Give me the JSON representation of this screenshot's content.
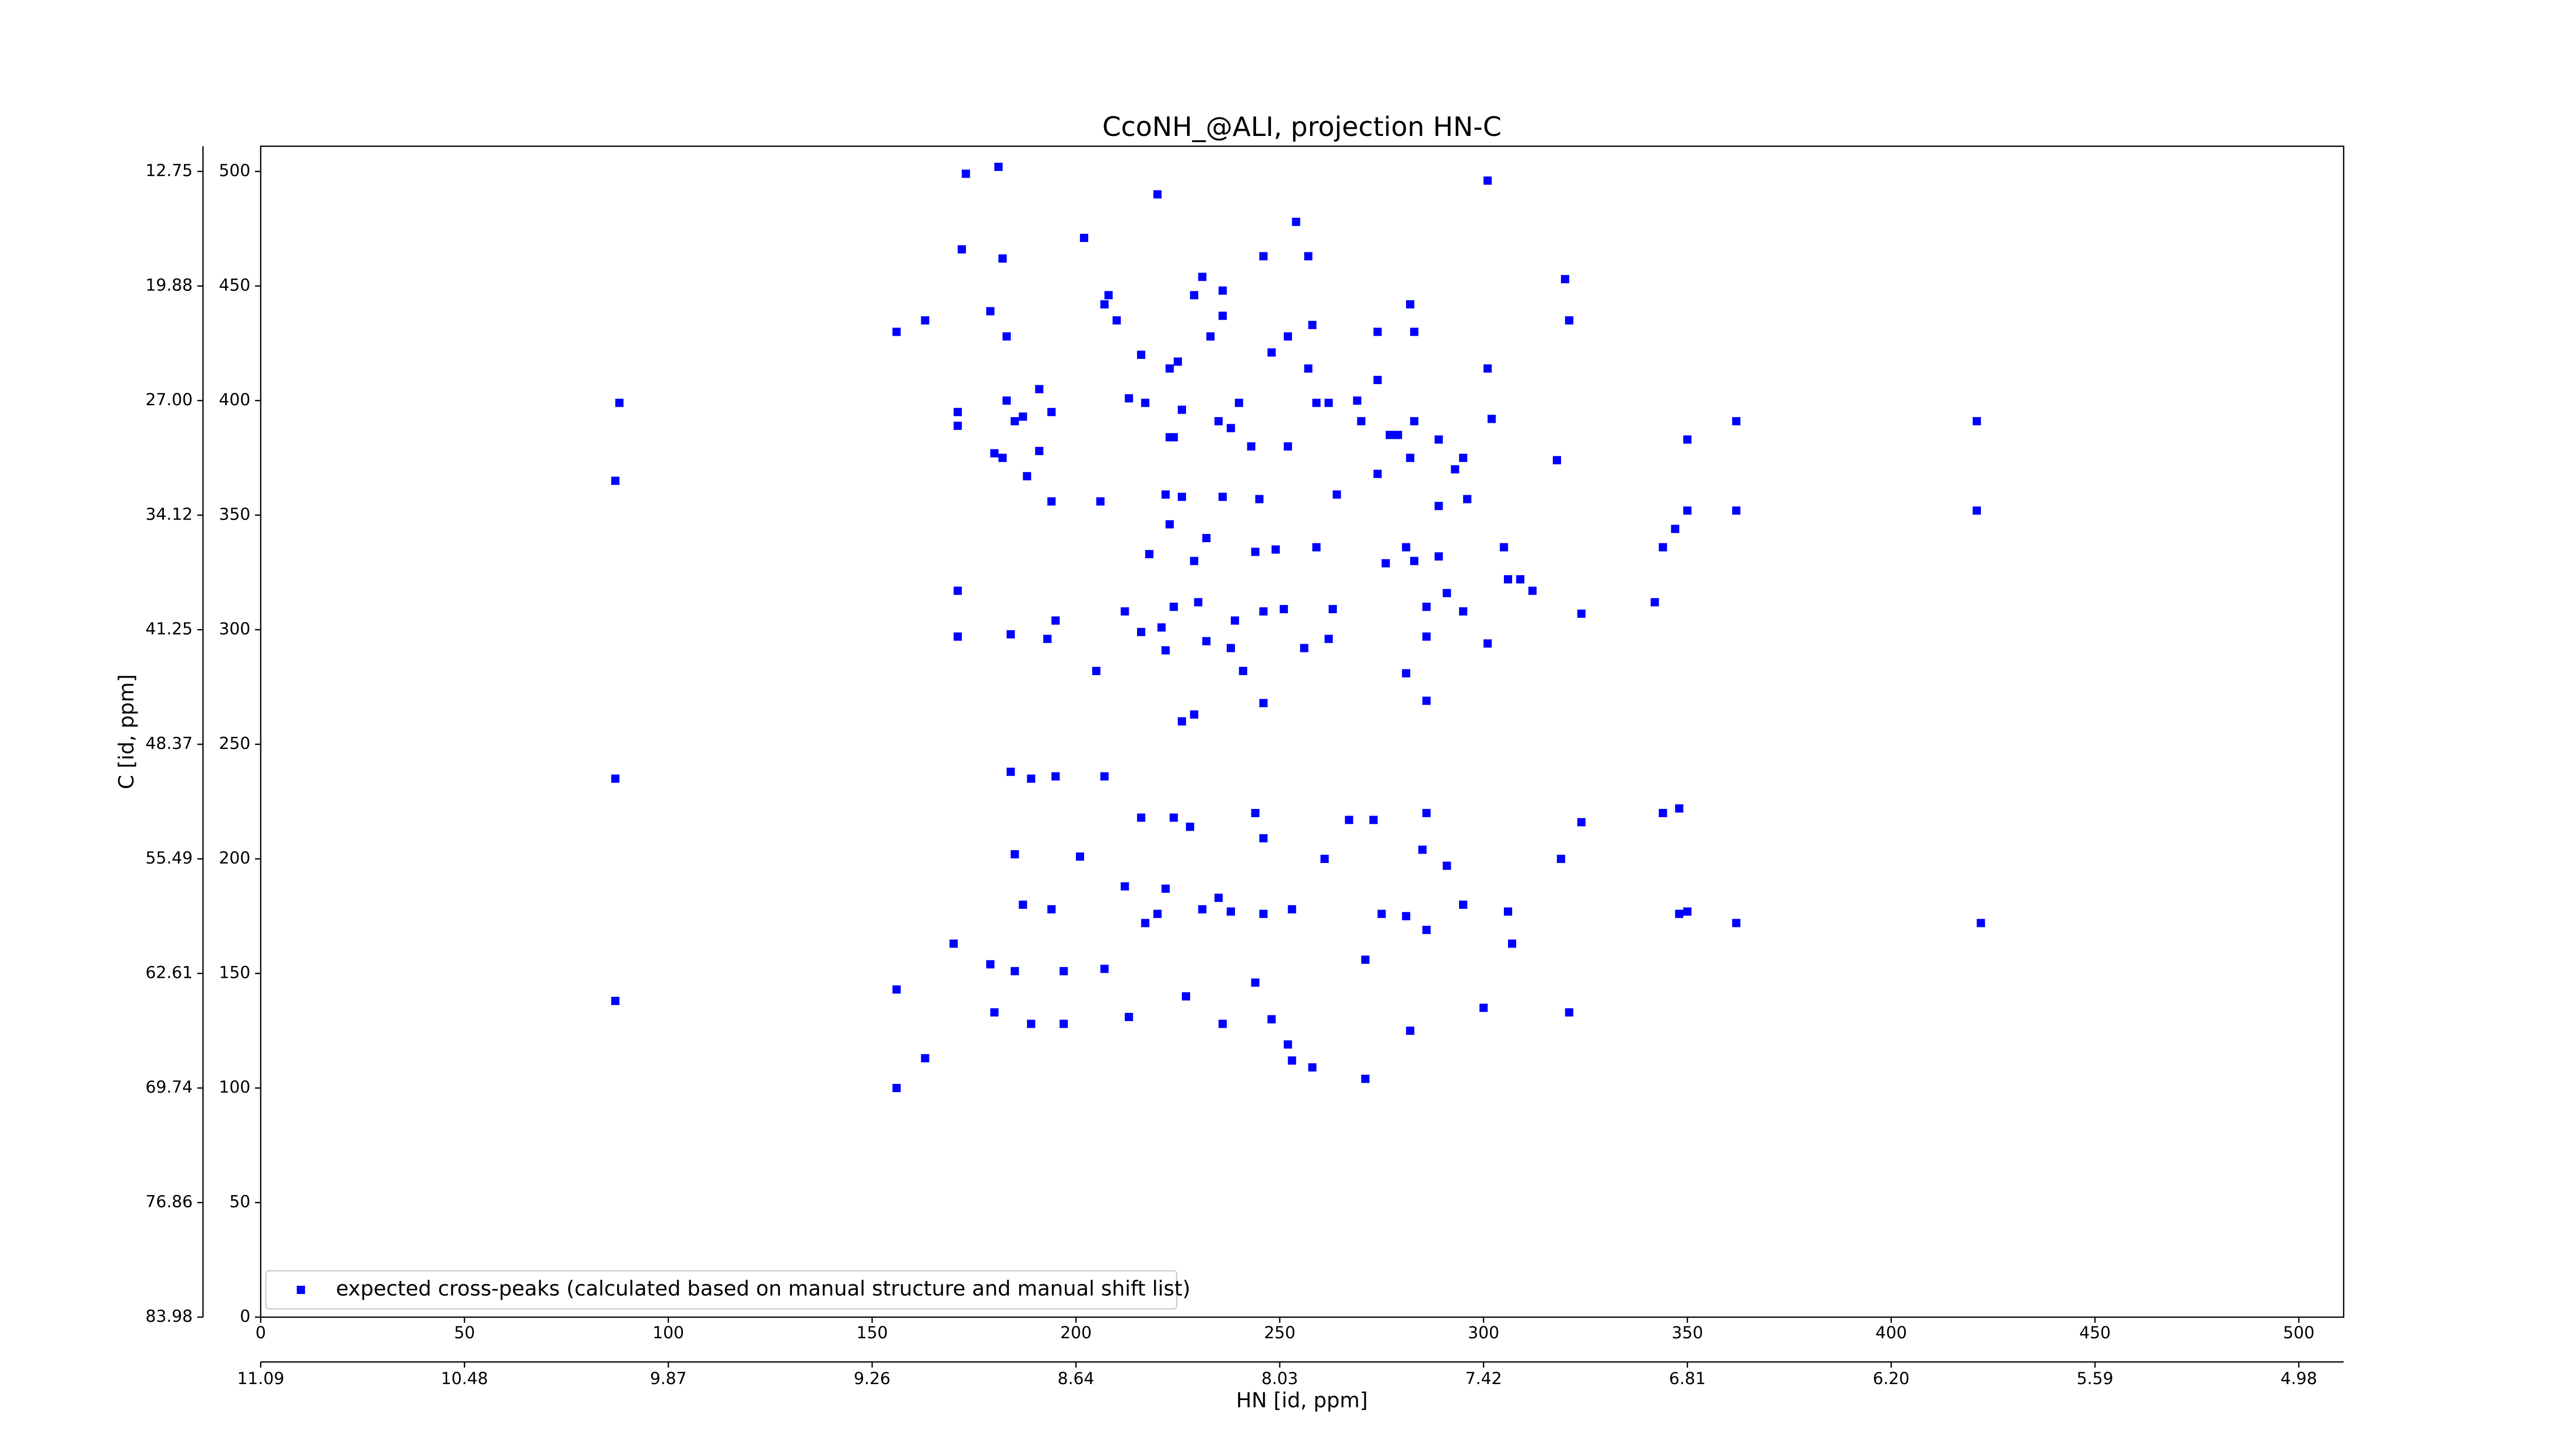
{
  "chart_data": {
    "type": "scatter",
    "title": "CcoNH_@ALI, projection HN-C",
    "xlabel": "HN [id, ppm]",
    "ylabel": "C [id, ppm]",
    "xlim": [
      0,
      511
    ],
    "ylim": [
      0,
      511
    ],
    "xticks": [
      0,
      50,
      100,
      150,
      200,
      250,
      300,
      350,
      400,
      450,
      500
    ],
    "yticks": [
      0,
      50,
      100,
      150,
      200,
      250,
      300,
      350,
      400,
      450,
      500
    ],
    "x2ticks": [
      {
        "value": 0,
        "label": "11.09"
      },
      {
        "value": 50,
        "label": "10.48"
      },
      {
        "value": 100,
        "label": "9.87"
      },
      {
        "value": 150,
        "label": "9.26"
      },
      {
        "value": 200,
        "label": "8.64"
      },
      {
        "value": 250,
        "label": "8.03"
      },
      {
        "value": 300,
        "label": "7.42"
      },
      {
        "value": 350,
        "label": "6.81"
      },
      {
        "value": 400,
        "label": "6.20"
      },
      {
        "value": 450,
        "label": "5.59"
      },
      {
        "value": 500,
        "label": "4.98"
      }
    ],
    "y2ticks": [
      {
        "value": 500,
        "label": "12.75"
      },
      {
        "value": 450,
        "label": "19.88"
      },
      {
        "value": 400,
        "label": "27.00"
      },
      {
        "value": 350,
        "label": "34.12"
      },
      {
        "value": 300,
        "label": "41.25"
      },
      {
        "value": 250,
        "label": "48.37"
      },
      {
        "value": 200,
        "label": "55.49"
      },
      {
        "value": 150,
        "label": "62.61"
      },
      {
        "value": 100,
        "label": "69.74"
      },
      {
        "value": 50,
        "label": "76.86"
      },
      {
        "value": 0,
        "label": "83.98"
      }
    ],
    "legend": "lower left",
    "series": [
      {
        "name": "expected cross-peaks (calculated based on manual structure and manual shift list)",
        "color": "#0000ff",
        "x": [
          88,
          87,
          87,
          87,
          156,
          163,
          156,
          156,
          163,
          171,
          171,
          171,
          171,
          172,
          170,
          173,
          181,
          182,
          179,
          183,
          183,
          185,
          180,
          182,
          188,
          191,
          194,
          191,
          187,
          184,
          193,
          195,
          202,
          207,
          208,
          210,
          220,
          216,
          223,
          225,
          229,
          231,
          236,
          236,
          233,
          213,
          217,
          223,
          224,
          226,
          240,
          238,
          235,
          222,
          226,
          236,
          243,
          245,
          244,
          246,
          254,
          257,
          258,
          252,
          248,
          257,
          259,
          262,
          252,
          264,
          269,
          274,
          277,
          279,
          282,
          283,
          283,
          282,
          274,
          274,
          289,
          295,
          296,
          301,
          302,
          301,
          305,
          306,
          312,
          318,
          320,
          321,
          324,
          342,
          344,
          347,
          350,
          350,
          362,
          362,
          421,
          421,
          184,
          189,
          195,
          185,
          187,
          194,
          201,
          207,
          216,
          212,
          222,
          224,
          228,
          231,
          235,
          238,
          246,
          244,
          253,
          261,
          267,
          273,
          275,
          281,
          286,
          285,
          291,
          295,
          286,
          306,
          324,
          319,
          344,
          348,
          348,
          350,
          362,
          422,
          307,
          271,
          180,
          189,
          197,
          197,
          207,
          227,
          213,
          236,
          244,
          248,
          252,
          253,
          258,
          271,
          282,
          300,
          321,
          179,
          185,
          217,
          220,
          205,
          212,
          224,
          221,
          222,
          230,
          232,
          238,
          239,
          246,
          251,
          256,
          262,
          263,
          286,
          286,
          291,
          295,
          301,
          309,
          216,
          226,
          241,
          229,
          246,
          246,
          286,
          281,
          276,
          281,
          283,
          289,
          259,
          249,
          232,
          229,
          223,
          218,
          206,
          194,
          289,
          293,
          270
        ],
        "values": [
          399,
          365,
          235,
          138,
          430,
          435,
          143,
          100,
          113,
          317,
          297,
          395,
          389,
          466,
          163,
          499,
          502,
          462,
          439,
          428,
          400,
          391,
          377,
          375,
          367,
          405,
          395,
          378,
          393,
          298,
          296,
          304,
          471,
          442,
          446,
          435,
          490,
          420,
          414,
          417,
          446,
          454,
          448,
          437,
          428,
          401,
          399,
          384,
          384,
          396,
          399,
          388,
          391,
          359,
          358,
          358,
          380,
          357,
          334,
          463,
          478,
          463,
          433,
          428,
          421,
          414,
          399,
          399,
          380,
          359,
          400,
          430,
          385,
          385,
          442,
          430,
          391,
          375,
          368,
          409,
          383,
          375,
          357,
          414,
          392,
          496,
          336,
          322,
          317,
          374,
          453,
          435,
          307,
          312,
          336,
          344,
          383,
          352,
          391,
          352,
          391,
          352,
          238,
          235,
          236,
          202,
          180,
          178,
          201,
          236,
          218,
          188,
          187,
          218,
          214,
          178,
          183,
          177,
          176,
          220,
          178,
          200,
          217,
          217,
          176,
          175,
          220,
          204,
          197,
          180,
          169,
          177,
          216,
          200,
          220,
          222,
          176,
          177,
          172,
          172,
          163,
          156,
          133,
          128,
          151,
          128,
          152,
          140,
          131,
          128,
          146,
          130,
          119,
          112,
          109,
          104,
          125,
          135,
          133,
          154,
          151,
          172,
          176,
          282,
          308,
          310,
          301,
          291,
          312,
          295,
          292,
          304,
          308,
          309,
          292,
          296,
          309,
          310,
          297,
          316,
          308,
          294,
          322,
          299,
          260,
          282,
          263,
          268,
          209,
          269,
          281,
          329,
          336,
          330,
          332,
          336,
          335,
          340,
          330,
          346,
          333,
          356,
          356,
          354,
          370,
          391
        ]
      }
    ]
  }
}
